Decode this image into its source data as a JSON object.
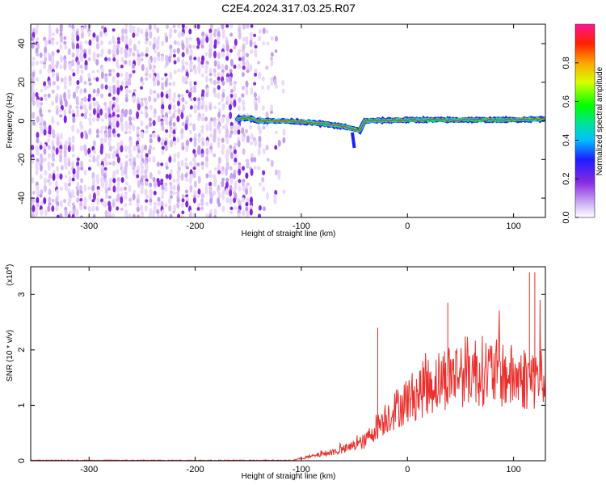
{
  "title": "C2E4.2024.317.03.25.R07",
  "chart_data": [
    {
      "type": "heatmap",
      "name": "spectrogram",
      "xlabel": "Height of straight line (km)",
      "ylabel": "Frequency (Hz)",
      "xlim": [
        -355,
        130
      ],
      "ylim": [
        -50,
        50
      ],
      "xticks": [
        -300,
        -200,
        -100,
        0,
        100
      ],
      "yticks": [
        -40,
        -20,
        0,
        20,
        40
      ],
      "signal_track": [
        {
          "x": -160,
          "y": 1
        },
        {
          "x": -150,
          "y": 1.5
        },
        {
          "x": -140,
          "y": 0
        },
        {
          "x": -120,
          "y": 0
        },
        {
          "x": -100,
          "y": -0.5
        },
        {
          "x": -80,
          "y": -1.5
        },
        {
          "x": -60,
          "y": -3
        },
        {
          "x": -45,
          "y": -5
        },
        {
          "x": -40,
          "y": 0
        },
        {
          "x": 0,
          "y": 0.5
        },
        {
          "x": 50,
          "y": 0.5
        },
        {
          "x": 100,
          "y": 0.5
        },
        {
          "x": 130,
          "y": 1
        }
      ],
      "colorbar": {
        "label": "Normalized spectral amplitude",
        "range": [
          0,
          1
        ],
        "ticks": [
          "0.0",
          "0.2",
          "0.4",
          "0.6",
          "0.8"
        ]
      }
    },
    {
      "type": "line",
      "name": "snr",
      "xlabel": "Height of straight line (km)",
      "ylabel": "SNR (10 * v/v)",
      "multiplier": "(x10",
      "multiplier_exp": "4",
      "multiplier_close": ")",
      "xlim": [
        -355,
        130
      ],
      "ylim": [
        0,
        3.5
      ],
      "xticks": [
        -300,
        -200,
        -100,
        0,
        100
      ],
      "yticks": [
        0,
        1,
        2,
        3
      ],
      "color": "#e8302c",
      "envelope": [
        {
          "x": -355,
          "y": 0.0
        },
        {
          "x": -110,
          "y": 0.0
        },
        {
          "x": -90,
          "y": 0.08
        },
        {
          "x": -60,
          "y": 0.2
        },
        {
          "x": -40,
          "y": 0.35
        },
        {
          "x": -30,
          "y": 0.6
        },
        {
          "x": -20,
          "y": 0.8
        },
        {
          "x": 0,
          "y": 1.1
        },
        {
          "x": 20,
          "y": 1.35
        },
        {
          "x": 40,
          "y": 1.55
        },
        {
          "x": 60,
          "y": 1.65
        },
        {
          "x": 80,
          "y": 1.6
        },
        {
          "x": 100,
          "y": 1.5
        },
        {
          "x": 115,
          "y": 1.5
        },
        {
          "x": 130,
          "y": 1.5
        }
      ],
      "peaks": [
        {
          "x": -28,
          "y": 2.4
        },
        {
          "x": 38,
          "y": 2.85
        },
        {
          "x": 115,
          "y": 3.4
        },
        {
          "x": 120,
          "y": 3.4
        }
      ]
    }
  ]
}
